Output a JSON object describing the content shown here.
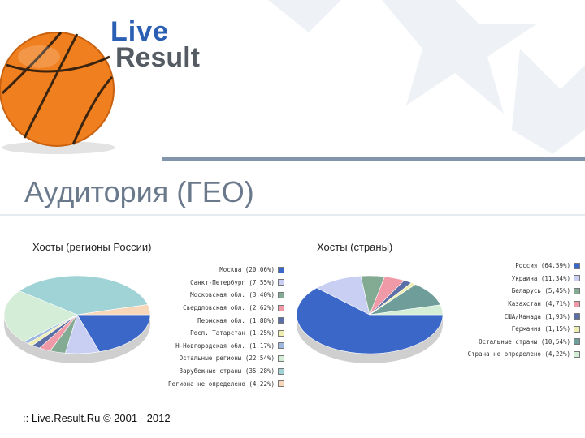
{
  "brand": {
    "line1": "Live",
    "line2": "Result"
  },
  "slide_title": "Аудитория (ГЕО)",
  "footer": ":: Live.Result.Ru © 2001 - 2012",
  "chart_data": [
    {
      "type": "pie",
      "title": "Хосты (регионы России)",
      "legend_position": "right",
      "series": [
        {
          "label": "Москва",
          "display": "(20,06%)",
          "value": 20.06,
          "color": "#3b67c8"
        },
        {
          "label": "Санкт-Петербург",
          "display": "(7,55%)",
          "value": 7.55,
          "color": "#c9cff2"
        },
        {
          "label": "Московская обл.",
          "display": "(3,40%)",
          "value": 3.4,
          "color": "#83aa93"
        },
        {
          "label": "Свердловская обл.",
          "display": "(2,62%)",
          "value": 2.62,
          "color": "#f09aa8"
        },
        {
          "label": "Пермская обл.",
          "display": "(1,88%)",
          "value": 1.88,
          "color": "#5b6ea6"
        },
        {
          "label": "Респ. Татарстан",
          "display": "(1,25%)",
          "value": 1.25,
          "color": "#eeeeb2"
        },
        {
          "label": "Н-Новгородская обл.",
          "display": "(1,17%)",
          "value": 1.17,
          "color": "#9db9e0"
        },
        {
          "label": "Остальные регионы",
          "display": "(22,54%)",
          "value": 22.54,
          "color": "#d4edd6"
        },
        {
          "label": "Зарубежные страны",
          "display": "(35,28%)",
          "value": 35.28,
          "color": "#9fd3d6"
        },
        {
          "label": "Региона не определено",
          "display": "(4,22%)",
          "value": 4.22,
          "color": "#f8d6ba"
        }
      ]
    },
    {
      "type": "pie",
      "title": "Хосты (страны)",
      "legend_position": "right",
      "series": [
        {
          "label": "Россия",
          "display": "(64,59%)",
          "value": 64.59,
          "color": "#3b67c8"
        },
        {
          "label": "Украина",
          "display": "(11,34%)",
          "value": 11.34,
          "color": "#c9cff2"
        },
        {
          "label": "Беларусь",
          "display": "(5,45%)",
          "value": 5.45,
          "color": "#83aa93"
        },
        {
          "label": "Казахстан",
          "display": "(4,71%)",
          "value": 4.71,
          "color": "#f09aa8"
        },
        {
          "label": "США/Канада",
          "display": "(1,93%)",
          "value": 1.93,
          "color": "#5b6ea6"
        },
        {
          "label": "Германия",
          "display": "(1,15%)",
          "value": 1.15,
          "color": "#eeeeb2"
        },
        {
          "label": "Остальные страны",
          "display": "(10,54%)",
          "value": 10.54,
          "color": "#6f9d9a"
        },
        {
          "label": "Страна не определено",
          "display": "(4,22%)",
          "value": 4.22,
          "color": "#d4edd6"
        }
      ]
    }
  ]
}
